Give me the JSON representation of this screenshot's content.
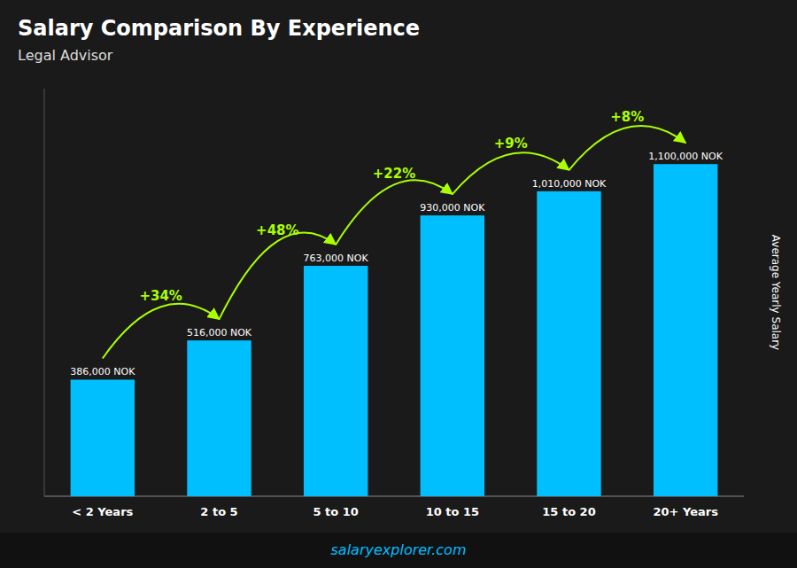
{
  "chart_data": {
    "type": "bar",
    "title": "Salary Comparison By Experience",
    "subtitle": "Legal Advisor",
    "ylabel": "Average Yearly Salary",
    "categories": [
      "< 2 Years",
      "2 to 5",
      "5 to 10",
      "10 to 15",
      "15 to 20",
      "20+ Years"
    ],
    "values": [
      386000,
      516000,
      763000,
      930000,
      1010000,
      1100000
    ],
    "value_labels": [
      "386,000 NOK",
      "516,000 NOK",
      "763,000 NOK",
      "930,000 NOK",
      "1,010,000 NOK",
      "1,100,000 NOK"
    ],
    "data_labels": true,
    "annotations": [
      "+34%",
      "+48%",
      "+22%",
      "+9%",
      "+8%"
    ],
    "footer": "salaryexplorer.com",
    "color": "#00BFFF",
    "ylim": [
      0,
      1350000
    ],
    "tick_labels": "x",
    "grid": false
  }
}
